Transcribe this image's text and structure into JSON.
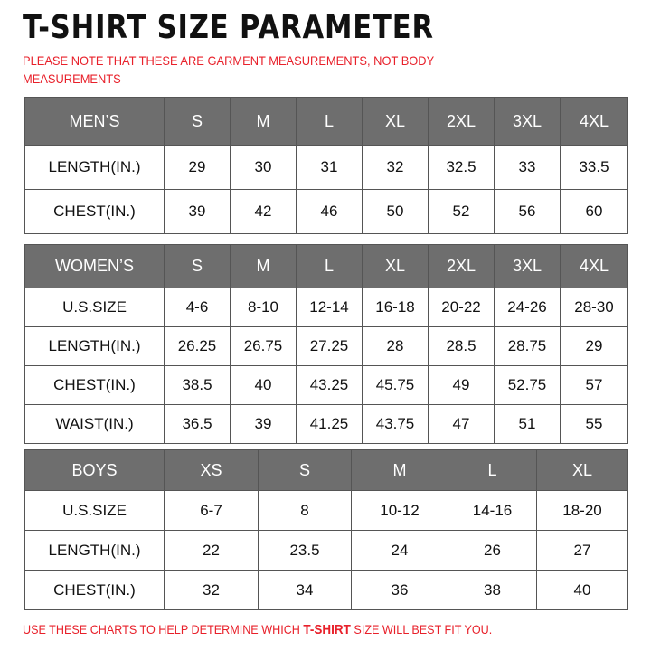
{
  "title": "T-SHIRT  SIZE  PARAMETER",
  "note": "PLEASE NOTE THAT THESE ARE GARMENT MEASUREMENTS, NOT BODY MEASUREMENTS",
  "footer": {
    "before": "USE THESE CHARTS TO HELP DETERMINE WHICH ",
    "highlight": "T-SHIRT",
    "after": " SIZE WILL BEST FIT YOU."
  },
  "colors": {
    "header_bg": "#6e6e6e",
    "note_red": "#e8202a"
  },
  "men": {
    "header": [
      "MEN’S",
      "S",
      "M",
      "L",
      "XL",
      "2XL",
      "3XL",
      "4XL"
    ],
    "rows": [
      [
        "LENGTH(IN.)",
        "29",
        "30",
        "31",
        "32",
        "32.5",
        "33",
        "33.5"
      ],
      [
        "CHEST(IN.)",
        "39",
        "42",
        "46",
        "50",
        "52",
        "56",
        "60"
      ]
    ]
  },
  "women": {
    "header": [
      "WOMEN’S",
      "S",
      "M",
      "L",
      "XL",
      "2XL",
      "3XL",
      "4XL"
    ],
    "rows": [
      [
        "U.S.SIZE",
        "4-6",
        "8-10",
        "12-14",
        "16-18",
        "20-22",
        "24-26",
        "28-30"
      ],
      [
        "LENGTH(IN.)",
        "26.25",
        "26.75",
        "27.25",
        "28",
        "28.5",
        "28.75",
        "29"
      ],
      [
        "CHEST(IN.)",
        "38.5",
        "40",
        "43.25",
        "45.75",
        "49",
        "52.75",
        "57"
      ],
      [
        "WAIST(IN.)",
        "36.5",
        "39",
        "41.25",
        "43.75",
        "47",
        "51",
        "55"
      ]
    ]
  },
  "boys": {
    "header": [
      "BOYS",
      "XS",
      "S",
      "M",
      "L",
      "XL"
    ],
    "rows": [
      [
        "U.S.SIZE",
        "6-7",
        "8",
        "10-12",
        "14-16",
        "18-20"
      ],
      [
        "LENGTH(IN.)",
        "22",
        "23.5",
        "24",
        "26",
        "27"
      ],
      [
        "CHEST(IN.)",
        "32",
        "34",
        "36",
        "38",
        "40"
      ]
    ]
  }
}
